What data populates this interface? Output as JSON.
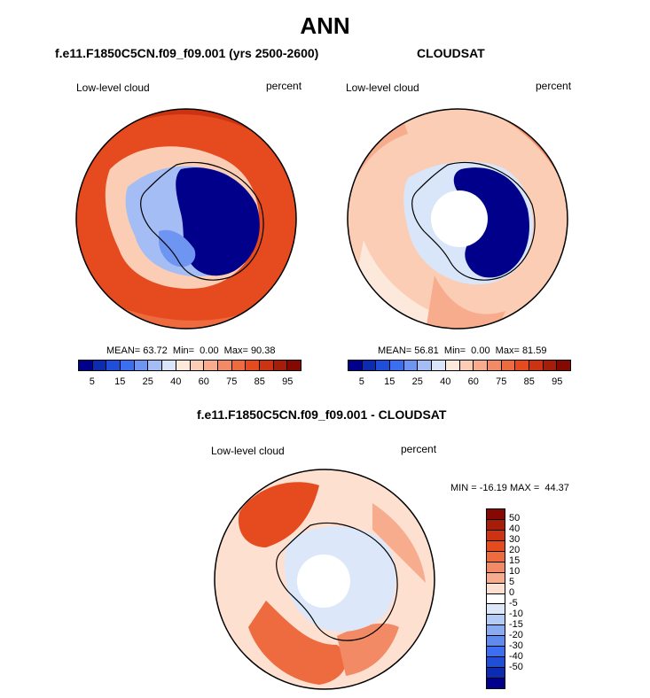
{
  "title": "ANN",
  "panels": [
    {
      "id": "model",
      "title": "f.e11.F1850C5CN.f09_f09.001 (yrs 2500-2600)",
      "left_label": "Low-level cloud",
      "right_label": "percent",
      "stats": "MEAN= 63.72  Min=  0.00  Max= 90.38"
    },
    {
      "id": "obs",
      "title": "CLOUDSAT",
      "left_label": "Low-level cloud",
      "right_label": "percent",
      "stats": "MEAN= 56.81  Min=  0.00  Max= 81.59"
    },
    {
      "id": "diff",
      "title": "f.e11.F1850C5CN.f09_f09.001 - CLOUDSAT",
      "left_label": "Low-level cloud",
      "right_label": "percent",
      "stats": "MIN = -16.19 MAX =  44.37"
    }
  ],
  "colorbar_abs": {
    "colors": [
      "#00008b",
      "#0c2bb0",
      "#1f4fd8",
      "#3b6ef0",
      "#6f95f2",
      "#a4bdf5",
      "#d9e6f9",
      "#fde8dc",
      "#fbcdb5",
      "#f7ac8e",
      "#f38a66",
      "#ee6a3f",
      "#e64a1f",
      "#cc3312",
      "#a61d0a",
      "#850803"
    ],
    "ticks": [
      "5",
      "15",
      "25",
      "40",
      "60",
      "75",
      "85",
      "95"
    ]
  },
  "colorbar_diff": {
    "colors": [
      "#850803",
      "#a61d0a",
      "#cc3312",
      "#e64a1f",
      "#ee6a3f",
      "#f38a66",
      "#f7ac8e",
      "#fde0d0",
      "#ffffff",
      "#dce8fa",
      "#b3cbf5",
      "#8aaaf2",
      "#5f8aee",
      "#3b6ef0",
      "#1f4fd8",
      "#0c2bb0",
      "#00008b"
    ],
    "labels": [
      "50",
      "40",
      "30",
      "20",
      "15",
      "10",
      "5",
      "0",
      "-5",
      "-10",
      "-15",
      "-20",
      "-30",
      "-40",
      "-50"
    ]
  },
  "map_colors": {
    "dark_ice": "#00008b",
    "ice_blue": "#2b3fd6",
    "light_blue": "#a9c6f3",
    "pale_blue": "#dde9fb",
    "pale_peach": "#fde3d2",
    "peach": "#f9c2a6",
    "salmon": "#f49d7a",
    "orange": "#ee6a3f",
    "red_orange": "#e64a1f",
    "deep_red": "#c73d12",
    "white": "#ffffff"
  }
}
